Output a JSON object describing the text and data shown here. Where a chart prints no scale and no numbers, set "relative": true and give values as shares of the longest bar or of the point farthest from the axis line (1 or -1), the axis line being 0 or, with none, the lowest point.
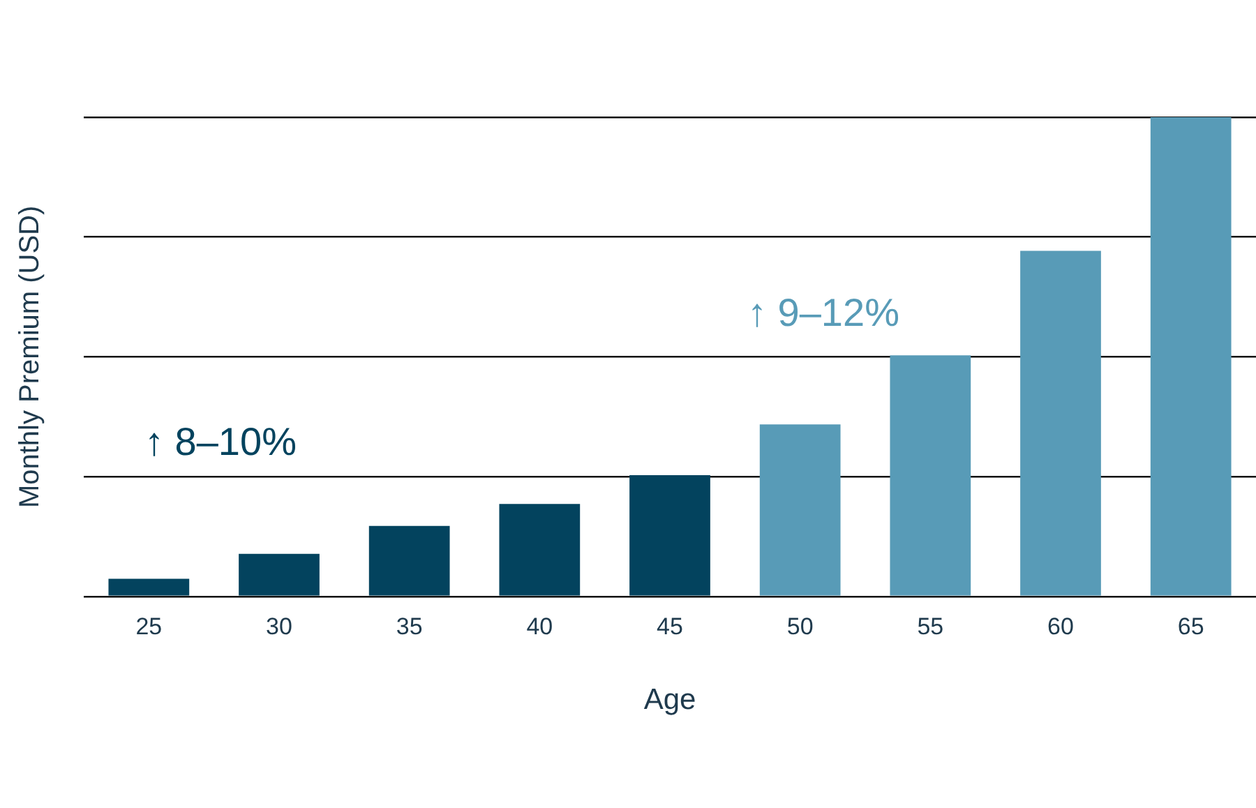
{
  "chart_data": {
    "type": "bar",
    "relative": true,
    "xlabel": "Age",
    "ylabel": "Monthly Premium (USD)",
    "categories": [
      "25",
      "30",
      "35",
      "40",
      "45",
      "50",
      "55",
      "60",
      "65"
    ],
    "values": [
      0.037,
      0.089,
      0.147,
      0.193,
      0.253,
      0.359,
      0.503,
      0.721,
      1
    ],
    "colors": [
      "#03435e",
      "#03435e",
      "#03435e",
      "#03435e",
      "#03435e",
      "#589bb7",
      "#589bb7",
      "#589bb7",
      "#589bb7"
    ],
    "annotations": [
      "↑ 8–10%",
      "↑ 9–12%"
    ],
    "grid": "y",
    "legend": false
  }
}
